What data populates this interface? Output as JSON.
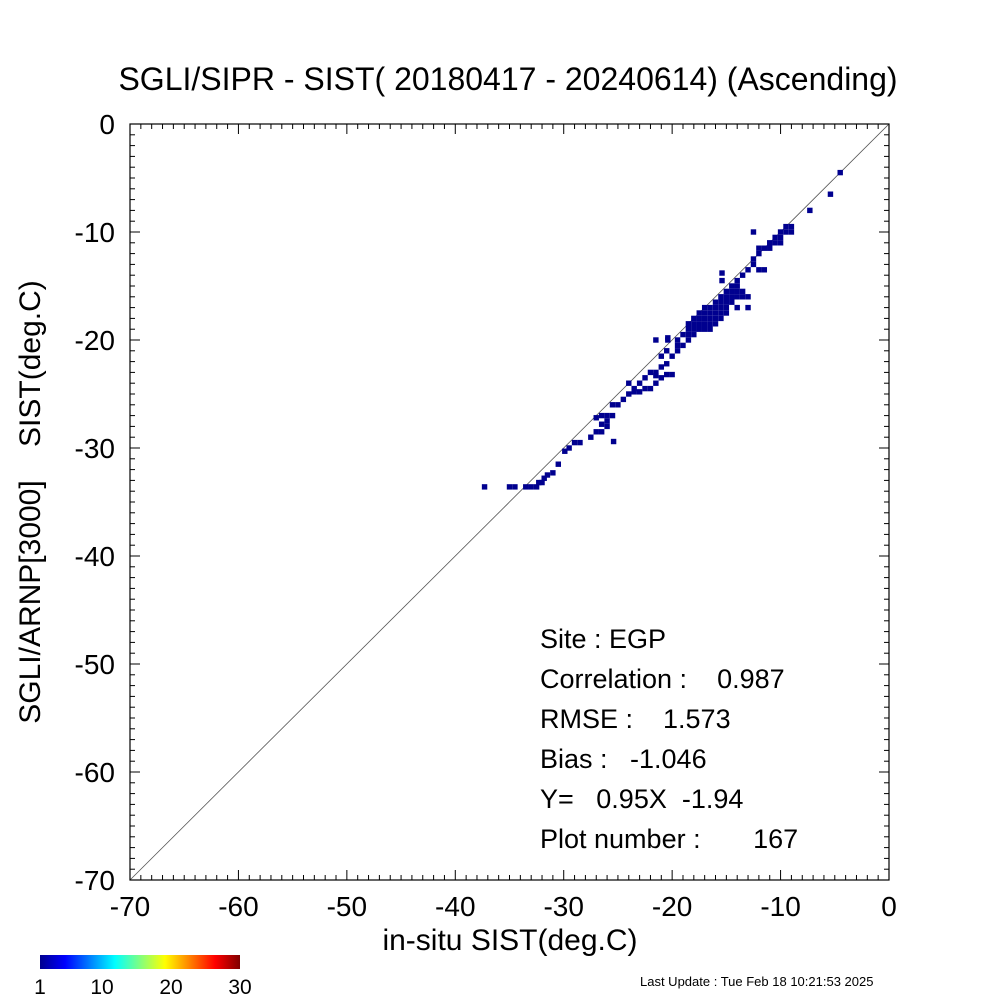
{
  "title": "SGLI/SIPR - SIST( 20180417 - 20240614) (Ascending)",
  "footer": "Last Update : Tue Feb 18 10:21:53 2025",
  "stats": {
    "site": "Site : EGP",
    "correlation": "Correlation :    0.987",
    "rmse": "RMSE :    1.573",
    "bias": "Bias :   -1.046",
    "regression": "Y=   0.95X  -1.94",
    "plot_number": "Plot number :       167"
  },
  "colorbar": {
    "colors": [
      "#00008f",
      "#0000ff",
      "#0080ff",
      "#00ffff",
      "#80ff80",
      "#ffff00",
      "#ff8000",
      "#ff0000",
      "#800000"
    ],
    "tick_labels": [
      "1",
      "10",
      "20",
      "30"
    ],
    "ticks": [
      1,
      10,
      20,
      30
    ],
    "range": [
      1,
      30
    ]
  },
  "chart_data": {
    "type": "heatmap",
    "title": "SGLI/SIPR - SIST( 20180417 - 20240614) (Ascending)",
    "xlabel": "in-situ SIST(deg.C)",
    "ylabel": "SGLI/ARNP[3000]    SIST(deg.C)",
    "xlim": [
      -70,
      0
    ],
    "ylim": [
      -70,
      0
    ],
    "xticks": [
      -70,
      -60,
      -50,
      -40,
      -30,
      -20,
      -10,
      0
    ],
    "yticks": [
      -70,
      -60,
      -50,
      -40,
      -30,
      -20,
      -10,
      0
    ],
    "xtick_labels": [
      "-70",
      "-60",
      "-50",
      "-40",
      "-30",
      "-20",
      "-10",
      "0"
    ],
    "ytick_labels": [
      "-70",
      "-60",
      "-50",
      "-40",
      "-30",
      "-20",
      "-10",
      "0"
    ],
    "reference_line": "y = x",
    "cell_size": 0.5,
    "cell_color": "#00008f",
    "points": [
      [
        -37.3,
        -33.6
      ],
      [
        -35.0,
        -33.6
      ],
      [
        -34.5,
        -33.6
      ],
      [
        -33.5,
        -33.6
      ],
      [
        -33.0,
        -33.6
      ],
      [
        -32.5,
        -33.6
      ],
      [
        -32.3,
        -33.2
      ],
      [
        -32.0,
        -33.2
      ],
      [
        -31.8,
        -32.8
      ],
      [
        -31.5,
        -32.5
      ],
      [
        -31.0,
        -32.3
      ],
      [
        -30.5,
        -31.5
      ],
      [
        -29.9,
        -30.3
      ],
      [
        -29.5,
        -30.0
      ],
      [
        -29.0,
        -29.5
      ],
      [
        -28.5,
        -29.5
      ],
      [
        -27.5,
        -29.0
      ],
      [
        -27.0,
        -28.5
      ],
      [
        -26.5,
        -28.5
      ],
      [
        -26.5,
        -27.8
      ],
      [
        -26.0,
        -28.0
      ],
      [
        -26.0,
        -27.5
      ],
      [
        -27.0,
        -27.2
      ],
      [
        -26.5,
        -27.0
      ],
      [
        -26.0,
        -27.0
      ],
      [
        -25.5,
        -27.0
      ],
      [
        -25.4,
        -29.4
      ],
      [
        -25.5,
        -26.0
      ],
      [
        -25.0,
        -26.0
      ],
      [
        -24.5,
        -25.5
      ],
      [
        -24.0,
        -25.0
      ],
      [
        -23.5,
        -24.5
      ],
      [
        -24.0,
        -24.0
      ],
      [
        -23.5,
        -24.8
      ],
      [
        -23.0,
        -24.8
      ],
      [
        -22.5,
        -24.5
      ],
      [
        -22.0,
        -24.5
      ],
      [
        -21.5,
        -24.0
      ],
      [
        -21.0,
        -23.5
      ],
      [
        -21.5,
        -23.3
      ],
      [
        -22.5,
        -23.5
      ],
      [
        -23.0,
        -24.0
      ],
      [
        -22.0,
        -23.0
      ],
      [
        -21.5,
        -23.0
      ],
      [
        -20.5,
        -23.2
      ],
      [
        -20.0,
        -23.2
      ],
      [
        -21.0,
        -22.5
      ],
      [
        -20.5,
        -22.2
      ],
      [
        -21.0,
        -21.5
      ],
      [
        -20.0,
        -21.5
      ],
      [
        -19.5,
        -21.0
      ],
      [
        -20.5,
        -21.0
      ],
      [
        -19.5,
        -20.5
      ],
      [
        -19.0,
        -20.5
      ],
      [
        -19.5,
        -20.0
      ],
      [
        -18.5,
        -20.0
      ],
      [
        -20.4,
        -20.0
      ],
      [
        -20.4,
        -19.8
      ],
      [
        -19.0,
        -19.5
      ],
      [
        -18.5,
        -19.5
      ],
      [
        -18.0,
        -19.5
      ],
      [
        -18.5,
        -19.0
      ],
      [
        -18.0,
        -19.0
      ],
      [
        -17.5,
        -19.0
      ],
      [
        -17.0,
        -19.0
      ],
      [
        -16.5,
        -19.0
      ],
      [
        -18.5,
        -18.5
      ],
      [
        -18.0,
        -18.5
      ],
      [
        -17.5,
        -18.5
      ],
      [
        -17.0,
        -18.5
      ],
      [
        -16.5,
        -18.5
      ],
      [
        -16.0,
        -18.5
      ],
      [
        -18.0,
        -18.0
      ],
      [
        -17.5,
        -18.0
      ],
      [
        -17.0,
        -18.0
      ],
      [
        -16.5,
        -18.0
      ],
      [
        -16.0,
        -18.0
      ],
      [
        -15.5,
        -18.0
      ],
      [
        -17.5,
        -17.5
      ],
      [
        -17.0,
        -17.5
      ],
      [
        -16.5,
        -17.5
      ],
      [
        -16.0,
        -17.5
      ],
      [
        -15.5,
        -17.5
      ],
      [
        -17.0,
        -17.0
      ],
      [
        -16.5,
        -17.0
      ],
      [
        -16.0,
        -17.0
      ],
      [
        -15.5,
        -17.0
      ],
      [
        -15.0,
        -17.0
      ],
      [
        -16.0,
        -16.5
      ],
      [
        -15.5,
        -16.5
      ],
      [
        -15.0,
        -16.5
      ],
      [
        -14.5,
        -16.5
      ],
      [
        -15.5,
        -16.0
      ],
      [
        -15.0,
        -16.0
      ],
      [
        -14.5,
        -16.0
      ],
      [
        -14.0,
        -16.0
      ],
      [
        -15.0,
        -15.5
      ],
      [
        -14.5,
        -15.5
      ],
      [
        -14.0,
        -15.5
      ],
      [
        -13.5,
        -15.5
      ],
      [
        -13.5,
        -16.0
      ],
      [
        -13.0,
        -16.0
      ],
      [
        -15.4,
        -14.5
      ],
      [
        -15.4,
        -13.8
      ],
      [
        -14.0,
        -17.0
      ],
      [
        -13.0,
        -17.0
      ],
      [
        -15.0,
        -17.5
      ],
      [
        -21.5,
        -20.0
      ],
      [
        -14.5,
        -15.0
      ],
      [
        -14.0,
        -15.0
      ],
      [
        -14.0,
        -14.5
      ],
      [
        -13.5,
        -14.0
      ],
      [
        -13.0,
        -13.5
      ],
      [
        -12.5,
        -13.0
      ],
      [
        -12.0,
        -13.5
      ],
      [
        -11.5,
        -13.5
      ],
      [
        -12.5,
        -12.5
      ],
      [
        -12.0,
        -12.0
      ],
      [
        -11.5,
        -11.5
      ],
      [
        -11.0,
        -11.0
      ],
      [
        -10.5,
        -10.5
      ],
      [
        -10.0,
        -10.0
      ],
      [
        -9.5,
        -9.5
      ],
      [
        -9.0,
        -9.5
      ],
      [
        -12.5,
        -10.0
      ],
      [
        -12.0,
        -11.5
      ],
      [
        -11.0,
        -11.5
      ],
      [
        -10.5,
        -11.0
      ],
      [
        -10.0,
        -10.5
      ],
      [
        -9.5,
        -10.0
      ],
      [
        -9.0,
        -10.0
      ],
      [
        -10.0,
        -11.0
      ],
      [
        -7.3,
        -8.0
      ],
      [
        -5.4,
        -6.5
      ],
      [
        -4.5,
        -4.5
      ]
    ]
  }
}
